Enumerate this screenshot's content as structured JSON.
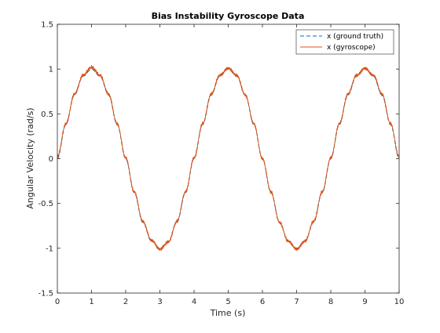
{
  "chart_data": {
    "type": "line",
    "title": "Bias Instability Gyroscope Data",
    "xlabel": "Time (s)",
    "ylabel": "Angular Velocity (rad/s)",
    "xlim": [
      0,
      10
    ],
    "ylim": [
      -1.5,
      1.5
    ],
    "xticks": [
      0,
      1,
      2,
      3,
      4,
      5,
      6,
      7,
      8,
      9,
      10
    ],
    "xtick_labels": [
      "0",
      "1",
      "2",
      "3",
      "4",
      "5",
      "6",
      "7",
      "8",
      "9",
      "10"
    ],
    "yticks": [
      -1.5,
      -1,
      -0.5,
      0,
      0.5,
      1,
      1.5
    ],
    "ytick_labels": [
      "-1.5",
      "-1",
      "-0.5",
      "0",
      "0.5",
      "1",
      "1.5"
    ],
    "grid": false,
    "legend_position": "top-right",
    "series": [
      {
        "name": "x (ground truth)",
        "style": "dashed",
        "color": "#0072BD",
        "x": [
          0,
          0.25,
          0.5,
          0.75,
          1,
          1.25,
          1.5,
          1.75,
          2,
          2.25,
          2.5,
          2.75,
          3,
          3.25,
          3.5,
          3.75,
          4,
          4.25,
          4.5,
          4.75,
          5,
          5.25,
          5.5,
          5.75,
          6,
          6.25,
          6.5,
          6.75,
          7,
          7.25,
          7.5,
          7.75,
          8,
          8.25,
          8.5,
          8.75,
          9,
          9.25,
          9.5,
          9.75,
          10
        ],
        "y": [
          0,
          0.38,
          0.71,
          0.92,
          1.0,
          0.92,
          0.71,
          0.38,
          0.0,
          -0.38,
          -0.71,
          -0.92,
          -1.0,
          -0.92,
          -0.71,
          -0.38,
          0.0,
          0.38,
          0.71,
          0.92,
          1.0,
          0.92,
          0.71,
          0.38,
          0.0,
          -0.38,
          -0.71,
          -0.92,
          -1.0,
          -0.92,
          -0.71,
          -0.38,
          0.0,
          0.38,
          0.71,
          0.92,
          1.0,
          0.92,
          0.71,
          0.38,
          0.0
        ]
      },
      {
        "name": "x (gyroscope)",
        "style": "solid",
        "color": "#D95319",
        "x": [
          0,
          0.25,
          0.5,
          0.75,
          1,
          1.25,
          1.5,
          1.75,
          2,
          2.25,
          2.5,
          2.75,
          3,
          3.25,
          3.5,
          3.75,
          4,
          4.25,
          4.5,
          4.75,
          5,
          5.25,
          5.5,
          5.75,
          6,
          6.25,
          6.5,
          6.75,
          7,
          7.25,
          7.5,
          7.75,
          8,
          8.25,
          8.5,
          8.75,
          9,
          9.25,
          9.5,
          9.75,
          10
        ],
        "y": [
          0.02,
          0.39,
          0.72,
          0.93,
          1.02,
          0.93,
          0.72,
          0.39,
          0.01,
          -0.37,
          -0.7,
          -0.91,
          -1.01,
          -0.93,
          -0.7,
          -0.37,
          0.01,
          0.39,
          0.72,
          0.93,
          1.01,
          0.93,
          0.71,
          0.39,
          0.0,
          -0.37,
          -0.71,
          -0.92,
          -1.01,
          -0.92,
          -0.7,
          -0.37,
          0.01,
          0.39,
          0.72,
          0.93,
          1.01,
          0.93,
          0.72,
          0.39,
          0.02
        ]
      }
    ]
  }
}
